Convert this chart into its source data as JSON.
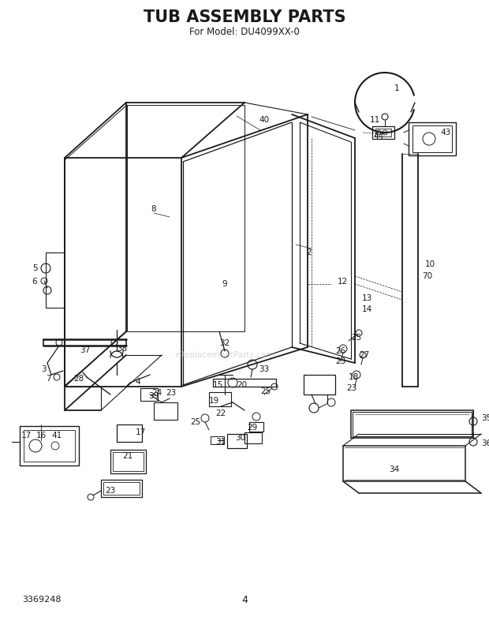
{
  "title": "TUB ASSEMBLY PARTS",
  "subtitle": "For Model: DU4099XX-0",
  "title_fontsize": 15,
  "subtitle_fontsize": 8.5,
  "bg_color": "#ffffff",
  "line_color": "#1a1a1a",
  "text_color": "#1a1a1a",
  "page_number": "4",
  "part_number": "3369248",
  "figsize": [
    6.2,
    7.82
  ],
  "dpi": 100,
  "watermark": "eReplacementParts.com"
}
